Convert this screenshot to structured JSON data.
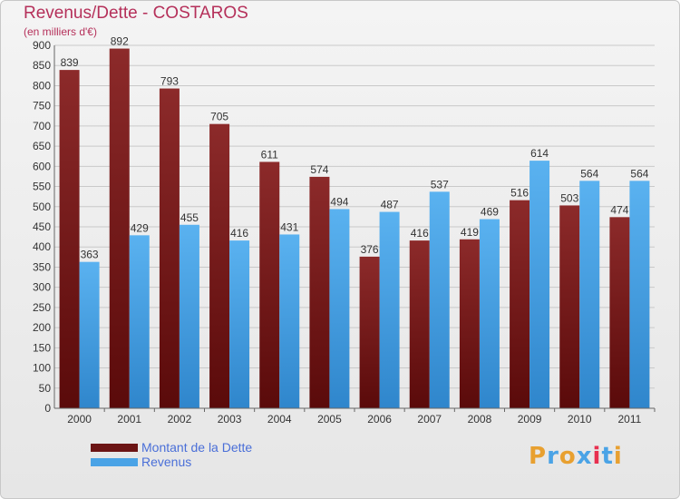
{
  "header": {
    "title": "Revenus/Dette - COSTAROS",
    "subtitle": "(en milliers d'€)"
  },
  "colors": {
    "dette": "#7a1c1c",
    "revenus": "#4aa3e6",
    "title": "#b5305a",
    "legend_text": "#4a6fd8"
  },
  "legend": {
    "items": [
      {
        "label": "Montant de la Dette",
        "color": "#6b1414"
      },
      {
        "label": "Revenus",
        "color": "#4aa3e6"
      }
    ]
  },
  "brand": {
    "letters": [
      "P",
      "r",
      "o",
      "x",
      "i",
      "t",
      "i"
    ],
    "colors": [
      "#e8a030",
      "#4aa3e6",
      "#e8a030",
      "#4aa3e6",
      "#e83050",
      "#4aa3e6",
      "#e8a030"
    ]
  },
  "chart_data": {
    "type": "bar",
    "title": "Revenus/Dette - COSTAROS",
    "subtitle": "(en milliers d'€)",
    "categories": [
      "2000",
      "2001",
      "2002",
      "2003",
      "2004",
      "2005",
      "2006",
      "2007",
      "2008",
      "2009",
      "2010",
      "2011"
    ],
    "series": [
      {
        "name": "Montant de la Dette",
        "values": [
          839,
          892,
          793,
          705,
          611,
          574,
          376,
          416,
          419,
          516,
          503,
          474
        ]
      },
      {
        "name": "Revenus",
        "values": [
          363,
          429,
          455,
          416,
          431,
          494,
          487,
          537,
          469,
          614,
          564,
          564
        ]
      }
    ],
    "ylim": [
      0,
      900
    ],
    "yticks": [
      0,
      50,
      100,
      150,
      200,
      250,
      300,
      350,
      400,
      450,
      500,
      550,
      600,
      650,
      700,
      750,
      800,
      850,
      900
    ],
    "grid": true,
    "legend_position": "bottom-left"
  }
}
